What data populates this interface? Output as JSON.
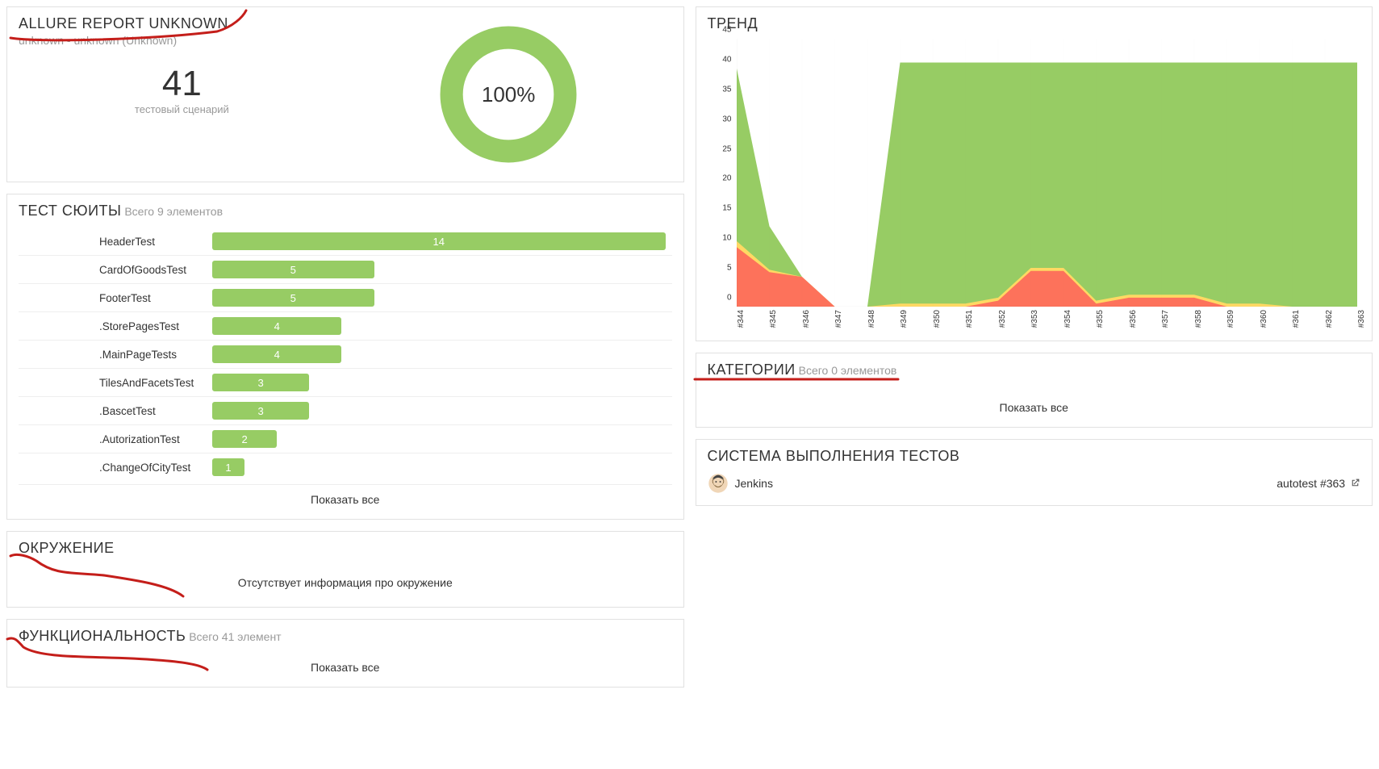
{
  "summary": {
    "title": "ALLURE REPORT UNKNOWN",
    "subtitle": "unknown - unknown (Unknown)",
    "count": "41",
    "count_label": "тестовый сценарий",
    "percent": "100%",
    "donut_color": "#97cc64",
    "donut_bg": "#ffffff"
  },
  "suites": {
    "title": "ТЕСТ СЮИТЫ",
    "subtitle": "Всего 9 элементов",
    "bar_color": "#97cc64",
    "max": 14,
    "rows": [
      {
        "name": "HeaderTest",
        "value": 14
      },
      {
        "name": "CardOfGoodsTest",
        "value": 5
      },
      {
        "name": "FooterTest",
        "value": 5
      },
      {
        "name": ".StorePagesTest",
        "value": 4
      },
      {
        "name": ".MainPageTests",
        "value": 4
      },
      {
        "name": "TilesAndFacetsTest",
        "value": 3
      },
      {
        "name": ".BascetTest",
        "value": 3
      },
      {
        "name": ".AutorizationTest",
        "value": 2
      },
      {
        "name": ".ChangeOfCityTest",
        "value": 1
      }
    ],
    "show_all": "Показать все"
  },
  "environment": {
    "title": "ОКРУЖЕНИЕ",
    "message": "Отсутствует информация про окружение"
  },
  "functionality": {
    "title": "ФУНКЦИОНАЛЬНОСТЬ",
    "subtitle": "Всего 41 элемент",
    "show_all": "Показать все"
  },
  "trend": {
    "title": "ТРЕНД",
    "x_labels": [
      "#344",
      "#345",
      "#346",
      "#347",
      "#348",
      "#349",
      "#350",
      "#351",
      "#352",
      "#353",
      "#354",
      "#355",
      "#356",
      "#357",
      "#358",
      "#359",
      "#360",
      "#361",
      "#362",
      "#363"
    ],
    "y_max": 45,
    "y_step": 5,
    "green_fill": "#97cc64",
    "yellow_fill": "#ffd963",
    "red_fill": "#fd725b",
    "grid_color": "#cccccc",
    "series_green": [
      40,
      13.5,
      5,
      0,
      0,
      41,
      41,
      41,
      41,
      41,
      41,
      41,
      41,
      41,
      41,
      41,
      41,
      41,
      41,
      41
    ],
    "series_yellow": [
      11,
      6.2,
      5,
      0,
      0,
      0.5,
      0.5,
      0.5,
      1.5,
      6.5,
      6.5,
      1,
      2,
      2,
      2,
      0.5,
      0.5,
      0,
      0,
      0
    ],
    "series_red": [
      10,
      5.8,
      5,
      0,
      0,
      0,
      0,
      0,
      1,
      6,
      6,
      0.5,
      1.5,
      1.5,
      1.5,
      0,
      0,
      0,
      0,
      0
    ]
  },
  "categories": {
    "title": "КАТЕГОРИИ",
    "subtitle": "Всего 0 элементов",
    "show_all": "Показать все"
  },
  "executor": {
    "title": "СИСТЕМА ВЫПОЛНЕНИЯ ТЕСТОВ",
    "name": "Jenkins",
    "build": "autotest #363"
  },
  "annotation_color": "#c41e1a",
  "annotation_width": 3
}
